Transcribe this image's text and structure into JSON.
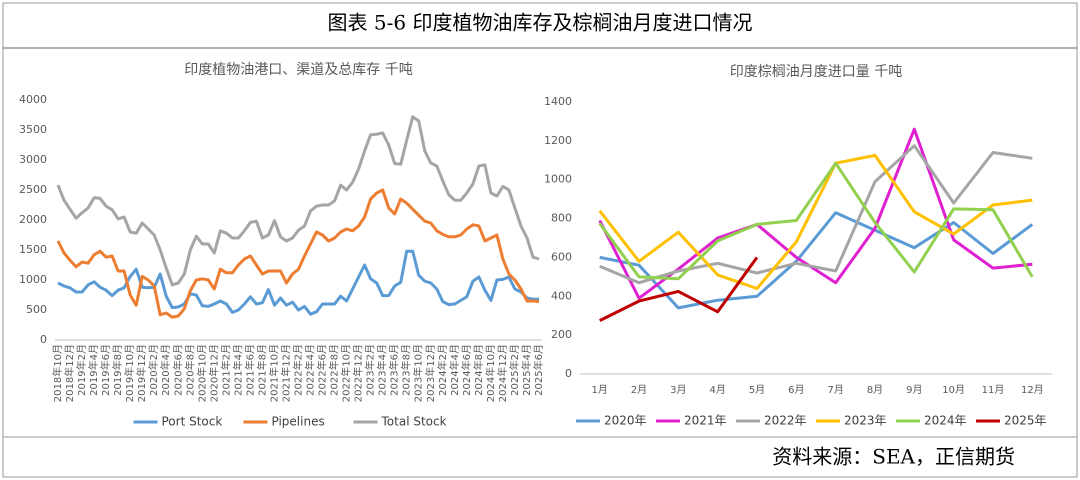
{
  "title": "图表 5-6   印度植物油库存及棕榈油月度进口情况",
  "source": "资料来源：SEA，正信期货",
  "chart_data": [
    {
      "type": "line",
      "title": "印度植物油港口、渠道及总库存   千吨",
      "categories": [
        "2018年10月",
        null,
        "2018年12月",
        null,
        "2019年2月",
        null,
        "2019年4月",
        null,
        "2019年6月",
        null,
        "2019年8月",
        null,
        "2019年10月",
        null,
        "2019年12月",
        null,
        "2020年2月",
        null,
        "2020年4月",
        null,
        "2020年6月",
        null,
        "2020年8月",
        null,
        "2020年10月",
        null,
        "2020年12月",
        null,
        "2021年2月",
        null,
        "2021年4月",
        null,
        "2021年6月",
        null,
        "2021年8月",
        null,
        "2021年10月",
        null,
        "2021年12月",
        null,
        "2022年2月",
        null,
        "2022年4月",
        null,
        "2022年6月",
        null,
        "2022年8月",
        null,
        "2022年10月",
        null,
        "2022年12月",
        null,
        "2023年2月",
        null,
        "2023年4月",
        null,
        "2023年6月",
        null,
        "2023年8月",
        null,
        "2023年10月",
        null,
        "2023年12月",
        null,
        "2024年2月",
        null,
        "2024年4月",
        null,
        "2024年6月",
        null,
        "2024年8月",
        null,
        "2024年10月",
        null,
        "2024年12月",
        null,
        "2025年2月",
        null,
        "2025年4月",
        null,
        "2025年6月"
      ],
      "series": [
        {
          "name": "Port Stock",
          "color": "#5b9bd5",
          "values": [
            950,
            900,
            870,
            800,
            800,
            920,
            970,
            880,
            830,
            740,
            830,
            870,
            1060,
            1180,
            880,
            870,
            880,
            1100,
            730,
            540,
            550,
            600,
            770,
            750,
            570,
            560,
            600,
            650,
            600,
            460,
            500,
            600,
            720,
            600,
            620,
            840,
            580,
            700,
            580,
            630,
            500,
            560,
            430,
            470,
            600,
            600,
            600,
            730,
            650,
            850,
            1050,
            1250,
            1020,
            950,
            740,
            740,
            900,
            960,
            1480,
            1480,
            1080,
            980,
            950,
            850,
            640,
            590,
            600,
            660,
            720,
            980,
            1050,
            830,
            660,
            1000,
            1010,
            1050,
            850,
            800,
            700,
            680,
            680
          ]
        },
        {
          "name": "Pipelines",
          "color": "#ed7d31",
          "values": [
            1650,
            1450,
            1330,
            1220,
            1300,
            1280,
            1420,
            1480,
            1380,
            1400,
            1150,
            1150,
            750,
            580,
            1060,
            1000,
            900,
            420,
            450,
            380,
            400,
            520,
            820,
            1000,
            1020,
            1000,
            850,
            1180,
            1120,
            1120,
            1250,
            1350,
            1400,
            1250,
            1100,
            1150,
            1150,
            1150,
            950,
            1100,
            1180,
            1400,
            1600,
            1800,
            1750,
            1650,
            1700,
            1800,
            1850,
            1820,
            1900,
            2050,
            2350,
            2450,
            2500,
            2200,
            2100,
            2350,
            2280,
            2180,
            2080,
            1980,
            1950,
            1820,
            1760,
            1720,
            1720,
            1750,
            1850,
            1920,
            1900,
            1650,
            1700,
            1750,
            1350,
            1100,
            1000,
            850,
            650,
            650,
            640
          ]
        },
        {
          "name": "Total Stock",
          "color": "#a5a5a5",
          "values": [
            2580,
            2330,
            2180,
            2030,
            2120,
            2200,
            2370,
            2360,
            2230,
            2170,
            2020,
            2050,
            1800,
            1780,
            1950,
            1850,
            1750,
            1500,
            1200,
            920,
            950,
            1100,
            1500,
            1730,
            1600,
            1600,
            1450,
            1820,
            1780,
            1700,
            1700,
            1820,
            1960,
            1980,
            1700,
            1750,
            1990,
            1720,
            1650,
            1700,
            1830,
            1900,
            2150,
            2230,
            2250,
            2250,
            2320,
            2580,
            2500,
            2630,
            2850,
            3150,
            3420,
            3430,
            3450,
            3250,
            2940,
            2930,
            3330,
            3720,
            3650,
            3150,
            2950,
            2900,
            2650,
            2420,
            2330,
            2330,
            2450,
            2600,
            2900,
            2920,
            2450,
            2400,
            2560,
            2500,
            2200,
            1900,
            1700,
            1380,
            1350
          ]
        }
      ],
      "ylim": [
        0,
        4000
      ],
      "yticks": [
        0,
        500,
        1000,
        1500,
        2000,
        2500,
        3000,
        3500,
        4000
      ],
      "grid": false
    },
    {
      "type": "line",
      "title": "印度棕榈油月度进口量 千吨",
      "categories": [
        "1月",
        "2月",
        "3月",
        "4月",
        "5月",
        "6月",
        "7月",
        "8月",
        "9月",
        "10月",
        "11月",
        "12月"
      ],
      "series": [
        {
          "name": "2020年",
          "color": "#5b9bd5",
          "values": [
            600,
            560,
            340,
            380,
            400,
            580,
            830,
            740,
            650,
            780,
            620,
            770
          ]
        },
        {
          "name": "2021年",
          "color": "#e020d0",
          "values": [
            790,
            390,
            540,
            700,
            770,
            600,
            470,
            750,
            1260,
            690,
            545,
            565
          ]
        },
        {
          "name": "2022年",
          "color": "#a5a5a5",
          "values": [
            555,
            470,
            530,
            570,
            520,
            570,
            530,
            990,
            1175,
            880,
            1140,
            1110
          ]
        },
        {
          "name": "2023年",
          "color": "#ffc000",
          "values": [
            840,
            580,
            730,
            510,
            440,
            680,
            1085,
            1125,
            835,
            720,
            870,
            895
          ]
        },
        {
          "name": "2024年",
          "color": "#92d050",
          "values": [
            775,
            500,
            490,
            685,
            770,
            790,
            1085,
            780,
            525,
            850,
            845,
            500
          ]
        },
        {
          "name": "2025年",
          "color": "#c00000",
          "values": [
            275,
            375,
            425,
            320,
            600,
            null,
            null,
            null,
            null,
            null,
            null,
            null
          ]
        }
      ],
      "ylim": [
        0,
        1400
      ],
      "yticks": [
        0,
        200,
        400,
        600,
        800,
        1000,
        1200,
        1400
      ],
      "grid": false
    }
  ]
}
